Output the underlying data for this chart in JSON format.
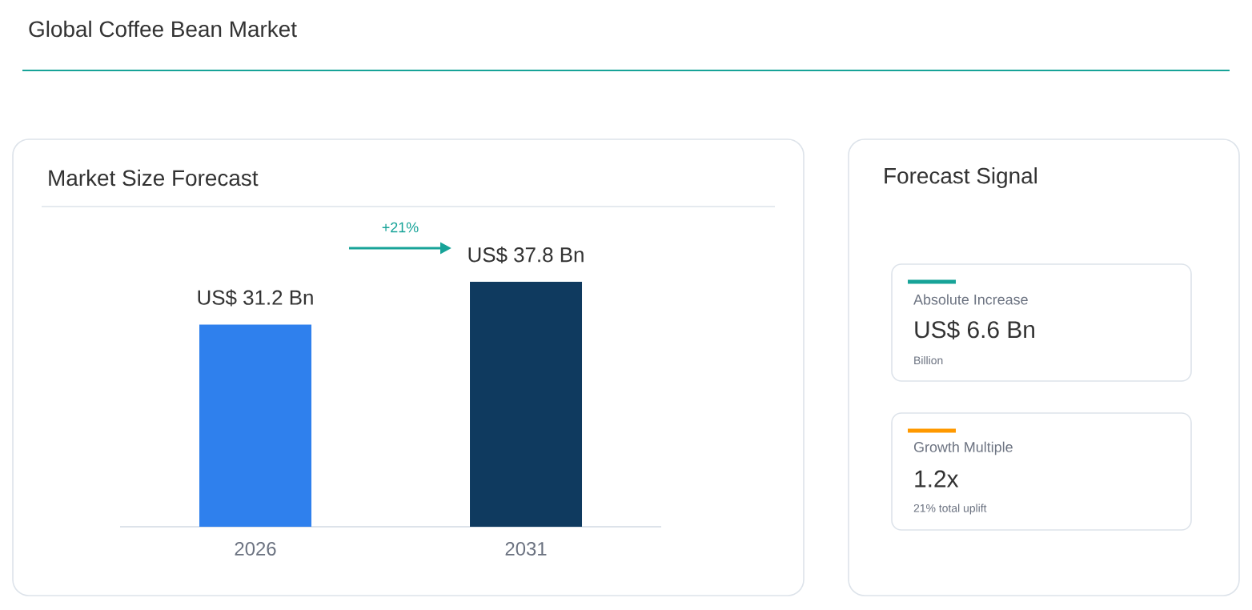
{
  "chart_data": [
    {
      "type": "bar",
      "title": "Global Coffee Bean Market",
      "subtitle": "Market Size Forecast",
      "categories": [
        "2026",
        "2031"
      ],
      "values": [
        31.2,
        37.8
      ],
      "colors": [
        "#2f80ed",
        "#0f3a5f"
      ],
      "value_labels": [
        "US$ 31.2 Bn",
        "US$ 37.8 Bn"
      ],
      "annotations": [
        "+21%"
      ]
    },
    {
      "type": "other",
      "title": "Forecast Signal",
      "annotations": [
        "Absolute Increase",
        "US$ 6.6 Bn",
        "Billion",
        "Growth Multiple",
        "1.2x",
        "21% total uplift"
      ]
    }
  ]
}
